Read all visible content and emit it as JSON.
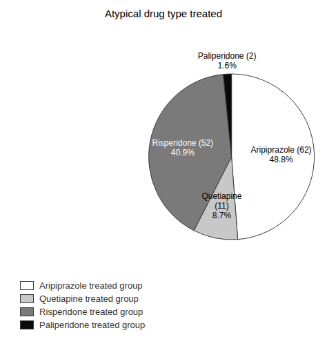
{
  "chart_data": {
    "type": "pie",
    "title": "Atypical drug type treated",
    "categories": [
      "Aripiprazole treated group",
      "Quetiapine treated group",
      "Risperidone treated group",
      "Paliperidone treated group"
    ],
    "values": [
      48.8,
      8.7,
      40.9,
      1.6
    ],
    "value_labels": [
      "Aripiprazole (62)\n48.8%",
      "Quetiapine\n(11)\n8.7%",
      "Risperidone (52)\n40.9%",
      "Paliperidone (2)\n1.6%"
    ],
    "colors": [
      "#ffffff",
      "#c8c8c8",
      "#7a7a7a",
      "#0a0a0a"
    ],
    "data_labels": true,
    "legend": "bottom"
  }
}
